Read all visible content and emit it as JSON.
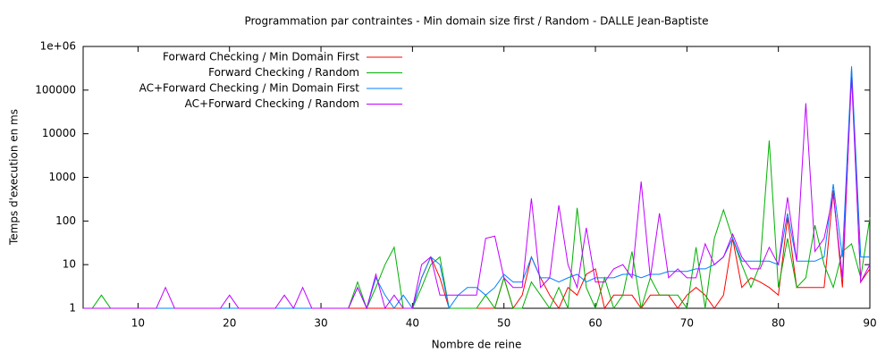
{
  "chart_data": {
    "type": "line",
    "title": "Programmation par contraintes - Min domain size first / Random - DALLE Jean-Baptiste",
    "x_label": "Nombre de reine",
    "y_label": "Temps d'execution en ms",
    "log_y": true,
    "legend": "top-left",
    "xlim": [
      4,
      90
    ],
    "xticks": [
      10,
      20,
      30,
      40,
      50,
      60,
      70,
      80,
      90
    ],
    "ylim": [
      1,
      1000000
    ],
    "yticks": [
      1,
      10,
      100,
      1000,
      10000,
      100000,
      {
        "value": 1000000,
        "label": "1e+06"
      }
    ],
    "x": [
      4,
      5,
      6,
      7,
      8,
      9,
      10,
      11,
      12,
      13,
      14,
      15,
      16,
      17,
      18,
      19,
      20,
      21,
      22,
      23,
      24,
      25,
      26,
      27,
      28,
      29,
      30,
      31,
      32,
      33,
      34,
      35,
      36,
      37,
      38,
      39,
      40,
      41,
      42,
      43,
      44,
      45,
      46,
      47,
      48,
      49,
      50,
      51,
      52,
      53,
      54,
      55,
      56,
      57,
      58,
      59,
      60,
      61,
      62,
      63,
      64,
      65,
      66,
      67,
      68,
      69,
      70,
      71,
      72,
      73,
      74,
      75,
      76,
      77,
      78,
      79,
      80,
      81,
      82,
      83,
      84,
      85,
      86,
      87,
      88,
      89,
      90
    ],
    "series": [
      {
        "name": "Forward Checking / Min Domain First",
        "color": "#ff0000",
        "values": [
          1,
          1,
          1,
          1,
          1,
          1,
          1,
          1,
          1,
          1,
          1,
          1,
          1,
          1,
          1,
          1,
          1,
          1,
          1,
          1,
          1,
          1,
          1,
          1,
          1,
          1,
          1,
          1,
          1,
          1,
          1,
          1,
          1,
          1,
          1,
          1,
          1,
          5,
          15,
          5,
          1,
          1,
          1,
          1,
          1,
          1,
          5,
          1,
          2,
          15,
          5,
          2,
          1,
          3,
          2,
          6,
          8,
          1,
          2,
          2,
          2,
          1,
          2,
          2,
          2,
          1,
          2,
          3,
          2,
          1,
          2,
          40,
          3,
          5,
          4,
          3,
          2,
          120,
          3,
          3,
          3,
          3,
          500,
          3,
          300000,
          4,
          8
        ]
      },
      {
        "name": "Forward Checking / Random",
        "color": "#00b000",
        "values": [
          1,
          1,
          2,
          1,
          1,
          1,
          1,
          1,
          1,
          1,
          1,
          1,
          1,
          1,
          1,
          1,
          1,
          1,
          1,
          1,
          1,
          1,
          1,
          1,
          1,
          1,
          1,
          1,
          1,
          1,
          4,
          1,
          3,
          10,
          25,
          1,
          1,
          3,
          10,
          15,
          1,
          1,
          1,
          1,
          2,
          1,
          5,
          1,
          1,
          4,
          2,
          1,
          3,
          1,
          200,
          3,
          1,
          5,
          1,
          2,
          20,
          1,
          5,
          2,
          2,
          2,
          1,
          25,
          1,
          40,
          180,
          40,
          10,
          3,
          10,
          7000,
          3,
          40,
          3,
          5,
          80,
          10,
          3,
          20,
          30,
          5,
          120
        ]
      },
      {
        "name": "AC+Forward Checking / Min Domain First",
        "color": "#0080ff",
        "values": [
          1,
          1,
          1,
          1,
          1,
          1,
          1,
          1,
          1,
          1,
          1,
          1,
          1,
          1,
          1,
          1,
          1,
          1,
          1,
          1,
          1,
          1,
          1,
          1,
          1,
          1,
          1,
          1,
          1,
          1,
          3,
          1,
          5,
          2,
          1,
          2,
          1,
          5,
          15,
          10,
          1,
          2,
          3,
          3,
          2,
          3,
          6,
          4,
          4,
          15,
          5,
          5,
          4,
          5,
          6,
          4,
          5,
          5,
          5,
          6,
          6,
          5,
          6,
          6,
          7,
          7,
          7,
          8,
          8,
          10,
          15,
          40,
          12,
          12,
          12,
          12,
          10,
          150,
          12,
          12,
          12,
          15,
          700,
          15,
          350000,
          15,
          15
        ]
      },
      {
        "name": "AC+Forward Checking / Random",
        "color": "#c000ff",
        "values": [
          1,
          1,
          1,
          1,
          1,
          1,
          1,
          1,
          1,
          3,
          1,
          1,
          1,
          1,
          1,
          1,
          2,
          1,
          1,
          1,
          1,
          1,
          2,
          1,
          3,
          1,
          1,
          1,
          1,
          1,
          3,
          1,
          6,
          1,
          2,
          1,
          1,
          10,
          15,
          2,
          2,
          2,
          2,
          2,
          40,
          45,
          5,
          3,
          3,
          330,
          3,
          5,
          230,
          10,
          3,
          70,
          4,
          4,
          8,
          10,
          5,
          800,
          5,
          150,
          5,
          8,
          5,
          5,
          30,
          10,
          15,
          50,
          15,
          8,
          8,
          25,
          10,
          350,
          12,
          50000,
          20,
          40,
          400,
          5,
          200000,
          4,
          10
        ]
      }
    ]
  }
}
